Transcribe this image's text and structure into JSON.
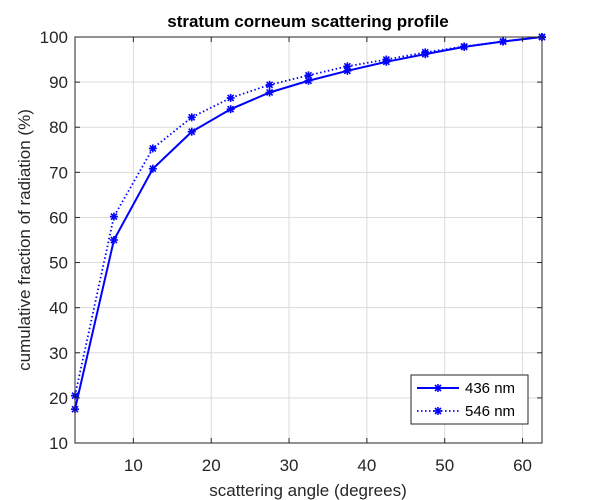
{
  "chart_data": {
    "type": "line",
    "title": "stratum corneum scattering profile",
    "xlabel": "scattering angle (degrees)",
    "ylabel": "cumulative fraction of radiation (%)",
    "xlim": [
      2.5,
      62.5
    ],
    "ylim": [
      10,
      100
    ],
    "xticks": [
      10,
      20,
      30,
      40,
      50,
      60
    ],
    "yticks": [
      10,
      20,
      30,
      40,
      50,
      60,
      70,
      80,
      90,
      100
    ],
    "grid": true,
    "legend_position": "bottom-right",
    "series": [
      {
        "name": "436 nm",
        "line_style": "solid",
        "marker": "asterisk",
        "color": "#0000ff",
        "x": [
          2.5,
          7.5,
          12.5,
          17.5,
          22.5,
          27.5,
          32.5,
          37.5,
          42.5,
          47.5,
          52.5,
          57.5,
          62.5
        ],
        "y": [
          17.5,
          55,
          70.8,
          79,
          84,
          87.7,
          90.3,
          92.5,
          94.5,
          96.2,
          97.8,
          99,
          100
        ]
      },
      {
        "name": "546 nm",
        "line_style": "dotted",
        "marker": "asterisk",
        "color": "#0000ff",
        "x": [
          2.5,
          7.5,
          12.5,
          17.5,
          22.5,
          27.5,
          32.5,
          37.5,
          42.5,
          47.5,
          52.5,
          57.5,
          62.5
        ],
        "y": [
          20.5,
          60.2,
          75.3,
          82.2,
          86.5,
          89.4,
          91.5,
          93.5,
          95,
          96.6,
          97.9,
          99,
          100
        ]
      }
    ]
  }
}
